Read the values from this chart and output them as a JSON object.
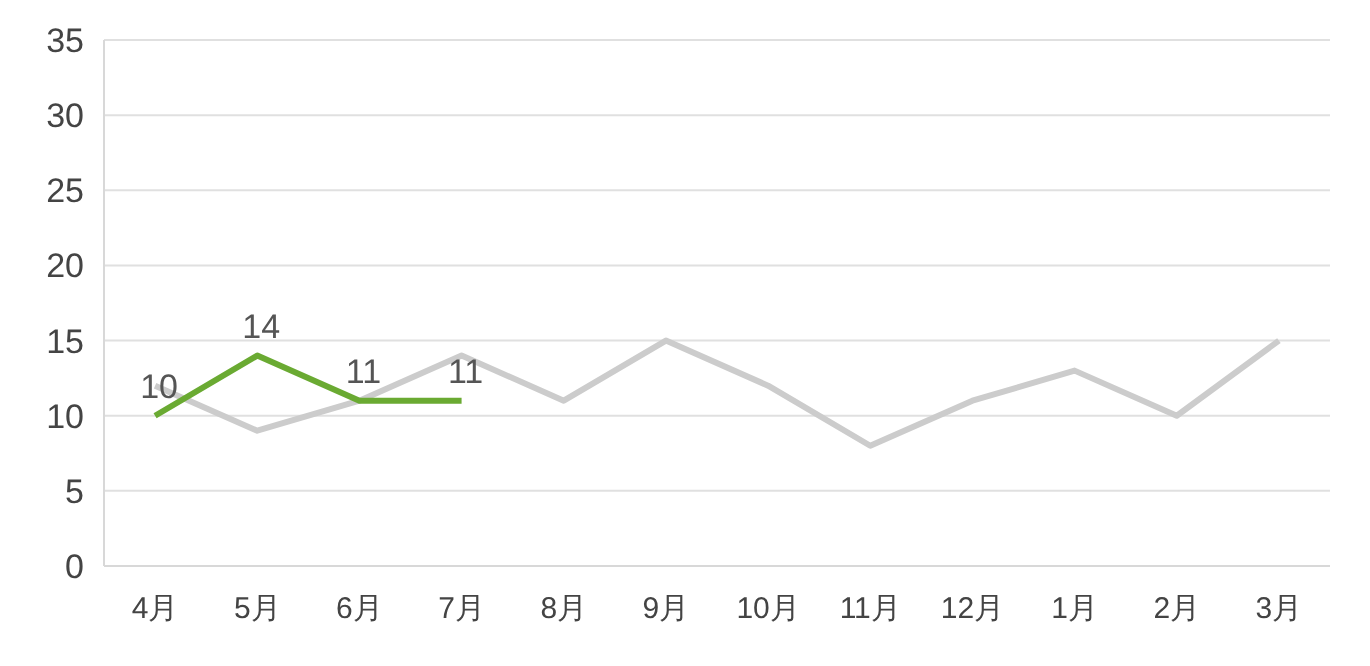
{
  "chart_data": {
    "type": "line",
    "categories": [
      "4月",
      "5月",
      "6月",
      "7月",
      "8月",
      "9月",
      "10月",
      "11月",
      "12月",
      "1月",
      "2月",
      "3月"
    ],
    "series": [
      {
        "color": "#cccccc",
        "values": [
          12,
          9,
          11,
          14,
          11,
          15,
          12,
          8,
          11,
          13,
          10,
          15
        ]
      },
      {
        "color": "#6aaa32",
        "values": [
          10,
          14,
          11,
          11,
          null,
          null,
          null,
          null,
          null,
          null,
          null,
          null
        ],
        "value_labels": [
          "10",
          "14",
          "11",
          "11",
          null,
          null,
          null,
          null,
          null,
          null,
          null,
          null
        ]
      }
    ],
    "ylim": [
      0,
      35
    ],
    "yticks": [
      0,
      5,
      10,
      15,
      20,
      25,
      30,
      35
    ],
    "grid": "y",
    "marker": "none",
    "line_style": "solid"
  }
}
